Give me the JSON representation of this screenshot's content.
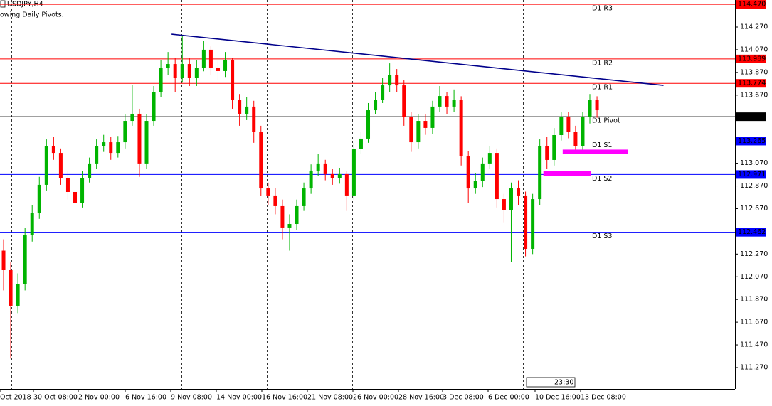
{
  "chart_data": {
    "type": "candlestick",
    "title": "USDJPY,H4",
    "subtitle": "owing Daily Pivots.",
    "up_color": "#00b400",
    "down_color": "#ff0000",
    "xlim": [
      -0.5,
      102.3
    ],
    "ylim": [
      111.082,
      114.508
    ],
    "yticks": [
      {
        "value": 114.27,
        "label": "114.270"
      },
      {
        "value": 114.07,
        "label": "114.070"
      },
      {
        "value": 113.87,
        "label": "113.870"
      },
      {
        "value": 113.67,
        "label": "113.670"
      },
      {
        "value": 113.07,
        "label": "113.070"
      },
      {
        "value": 112.87,
        "label": "112.870"
      },
      {
        "value": 112.67,
        "label": "112.670"
      },
      {
        "value": 112.27,
        "label": "112.270"
      },
      {
        "value": 112.07,
        "label": "112.070"
      },
      {
        "value": 111.87,
        "label": "111.870"
      },
      {
        "value": 111.67,
        "label": "111.670"
      },
      {
        "value": 111.47,
        "label": "111.470"
      },
      {
        "value": 111.27,
        "label": "111.270"
      }
    ],
    "x_labels": [
      "Oct 2018",
      "30 Oct 08:00",
      "2 Nov 00:00",
      "6 Nov 16:00",
      "9 Nov 08:00",
      "14 Nov 00:00",
      "16 Nov 16:00",
      "21 Nov 08:00",
      "26 Nov 00:00",
      "28 Nov 16:00",
      "3 Dec 08:00",
      "6 Dec 00:00",
      "10 Dec 16:00",
      "13 Dec 08:00"
    ],
    "cursor_time": "23:30",
    "open": [
      112.3,
      112.128,
      111.815,
      112.003,
      112.441,
      112.629,
      112.88,
      113.224,
      113.161,
      112.942,
      112.817,
      112.723,
      112.942,
      113.068,
      113.224,
      113.255,
      113.161,
      113.255,
      113.443,
      113.506,
      113.068,
      113.443,
      113.694,
      113.913,
      113.944,
      113.819,
      113.944,
      113.819,
      113.913,
      114.07,
      113.913,
      113.882,
      113.976,
      113.631,
      113.506,
      113.569,
      113.349,
      112.848,
      112.786,
      112.692,
      112.504,
      112.535,
      112.692,
      112.848,
      113.005,
      113.068,
      112.974,
      112.942,
      112.974,
      112.786,
      113.193,
      113.287,
      113.537,
      113.631,
      113.756,
      113.85,
      113.756,
      113.475,
      113.255,
      113.443,
      113.381,
      113.569,
      113.662,
      113.569,
      113.631,
      113.13,
      112.848,
      112.911,
      113.068,
      113.161,
      112.754,
      112.66,
      112.848,
      112.786,
      112.316,
      112.754,
      113.224,
      113.099,
      113.318,
      113.475,
      113.349,
      113.224,
      113.475,
      113.631
    ],
    "high": [
      112.4,
      112.2,
      112.1,
      112.5,
      112.7,
      112.95,
      113.28,
      113.3,
      113.2,
      113.0,
      112.88,
      113.0,
      113.12,
      113.28,
      113.32,
      113.3,
      113.31,
      113.5,
      113.76,
      113.55,
      113.5,
      113.75,
      113.98,
      114.05,
      114.0,
      114.2,
      114.0,
      113.98,
      114.15,
      114.1,
      113.98,
      114.05,
      114.0,
      113.68,
      113.65,
      113.62,
      113.4,
      112.9,
      112.85,
      112.75,
      112.62,
      112.75,
      112.9,
      113.06,
      113.15,
      113.1,
      113.02,
      113.03,
      113.0,
      113.25,
      113.35,
      113.6,
      113.7,
      113.82,
      113.95,
      113.9,
      113.8,
      113.52,
      113.5,
      113.5,
      113.62,
      113.75,
      113.7,
      113.72,
      113.66,
      113.18,
      112.98,
      113.12,
      113.22,
      113.2,
      112.8,
      112.9,
      112.92,
      112.82,
      112.8,
      113.28,
      113.3,
      113.38,
      113.52,
      113.52,
      113.4,
      113.52,
      113.68,
      113.66
    ],
    "low": [
      111.95,
      111.35,
      111.75,
      111.95,
      112.38,
      112.58,
      112.83,
      113.1,
      112.88,
      112.75,
      112.62,
      112.68,
      112.9,
      113.02,
      113.17,
      113.1,
      113.12,
      113.2,
      113.4,
      112.95,
      113.02,
      113.4,
      113.65,
      113.85,
      113.7,
      113.78,
      113.75,
      113.75,
      113.88,
      113.85,
      113.8,
      113.83,
      113.55,
      113.4,
      113.45,
      113.25,
      112.78,
      112.7,
      112.62,
      112.4,
      112.3,
      112.48,
      112.65,
      112.8,
      112.96,
      112.92,
      112.88,
      112.89,
      112.65,
      112.75,
      113.15,
      113.25,
      113.5,
      113.6,
      113.7,
      113.7,
      113.4,
      113.17,
      113.2,
      113.32,
      113.33,
      113.52,
      113.5,
      113.52,
      113.05,
      112.72,
      112.8,
      112.86,
      113.02,
      112.68,
      112.55,
      112.2,
      112.7,
      112.25,
      112.27,
      112.7,
      113.02,
      113.05,
      113.27,
      113.29,
      113.15,
      113.18,
      113.42,
      113.47
    ],
    "close": [
      112.128,
      111.815,
      112.003,
      112.441,
      112.629,
      112.88,
      113.224,
      113.161,
      112.942,
      112.817,
      112.723,
      112.942,
      113.068,
      113.224,
      113.255,
      113.161,
      113.255,
      113.443,
      113.506,
      113.068,
      113.443,
      113.694,
      113.913,
      113.944,
      113.819,
      113.944,
      113.819,
      113.913,
      114.07,
      113.913,
      113.882,
      113.976,
      113.631,
      113.506,
      113.569,
      113.349,
      112.848,
      112.786,
      112.692,
      112.504,
      112.535,
      112.692,
      112.848,
      113.005,
      113.068,
      112.974,
      112.942,
      112.974,
      112.786,
      113.193,
      113.287,
      113.537,
      113.631,
      113.756,
      113.85,
      113.756,
      113.475,
      113.255,
      113.443,
      113.381,
      113.569,
      113.662,
      113.569,
      113.631,
      113.13,
      112.848,
      112.911,
      113.068,
      113.161,
      112.754,
      112.66,
      112.848,
      112.786,
      112.316,
      112.754,
      113.224,
      113.099,
      113.318,
      113.475,
      113.349,
      113.224,
      113.475,
      113.631,
      113.537
    ],
    "levels": [
      {
        "name": "D1 R3",
        "value": 114.47,
        "price_label": "114.470",
        "color": "#ff0000"
      },
      {
        "name": "D1 R2",
        "value": 113.989,
        "price_label": "113.989",
        "color": "#ff0000"
      },
      {
        "name": "D1 R1",
        "value": 113.774,
        "price_label": "113.774",
        "color": "#ff0000"
      },
      {
        "name": "D1 Pivot",
        "value": 113.48,
        "price_label": "113.480",
        "color": "#000000"
      },
      {
        "name": "D1 S1",
        "value": 113.265,
        "price_label": "113.265",
        "color": "#0000ff"
      },
      {
        "name": "D1 S2",
        "value": 112.971,
        "price_label": "112.971",
        "color": "#0000ff"
      },
      {
        "name": "D1 S3",
        "value": 112.462,
        "price_label": "112.462",
        "color": "#0000ff"
      }
    ],
    "trendline": {
      "x": [
        23.5,
        92.3
      ],
      "y": [
        114.207,
        113.756
      ],
      "color": "#00008b"
    },
    "zones": [
      {
        "x": [
          78.2,
          87.3
        ],
        "y": [
          113.19,
          113.15
        ],
        "color": "#ff00ff"
      },
      {
        "x": [
          75.5,
          82.1
        ],
        "y": [
          113.0,
          112.96
        ],
        "color": "#ff00ff"
      }
    ]
  }
}
